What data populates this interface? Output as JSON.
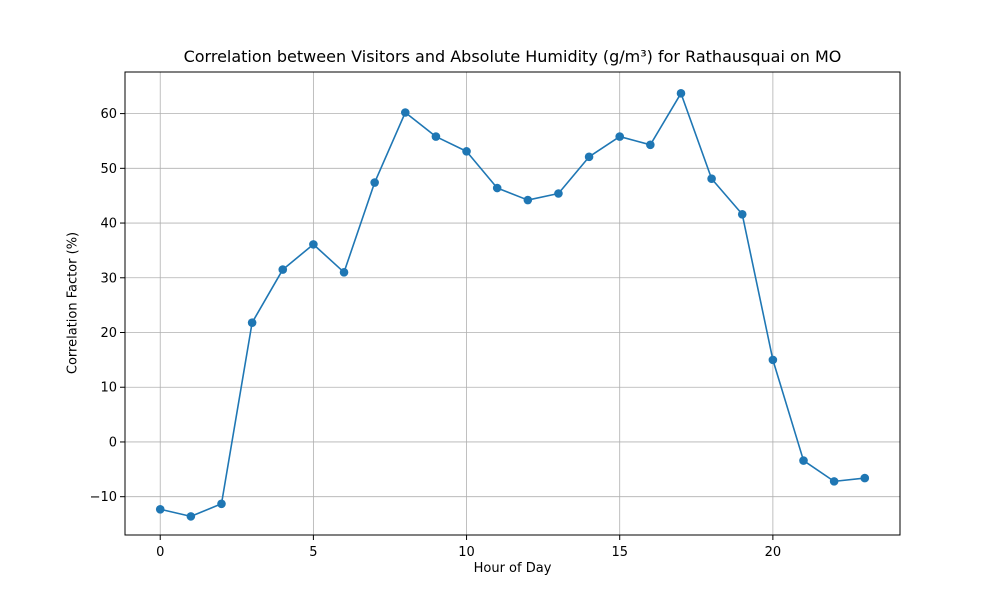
{
  "chart_data": {
    "type": "line",
    "title": "Correlation between Visitors and Absolute Humidity (g/m³) for Rathausquai on MO",
    "xlabel": "Hour of Day",
    "ylabel": "Correlation Factor (%)",
    "xlim": [
      -1.15,
      24.15
    ],
    "ylim": [
      -17.0,
      67.6
    ],
    "xticks": [
      0,
      5,
      10,
      15,
      20
    ],
    "yticks": [
      -10,
      0,
      10,
      20,
      30,
      40,
      50,
      60
    ],
    "grid": true,
    "series": [
      {
        "color": "#1f77b4",
        "marker": "circle",
        "x": [
          0,
          1,
          2,
          3,
          4,
          5,
          6,
          7,
          8,
          9,
          10,
          11,
          12,
          13,
          14,
          15,
          16,
          17,
          18,
          19,
          20,
          21,
          22,
          23
        ],
        "y": [
          -12.3,
          -13.6,
          -11.3,
          21.8,
          31.5,
          36.1,
          31.0,
          47.4,
          60.2,
          55.8,
          53.1,
          46.4,
          44.2,
          45.4,
          52.1,
          55.8,
          54.3,
          63.7,
          48.1,
          41.6,
          15.0,
          -3.4,
          -7.2,
          -6.6
        ]
      }
    ]
  }
}
